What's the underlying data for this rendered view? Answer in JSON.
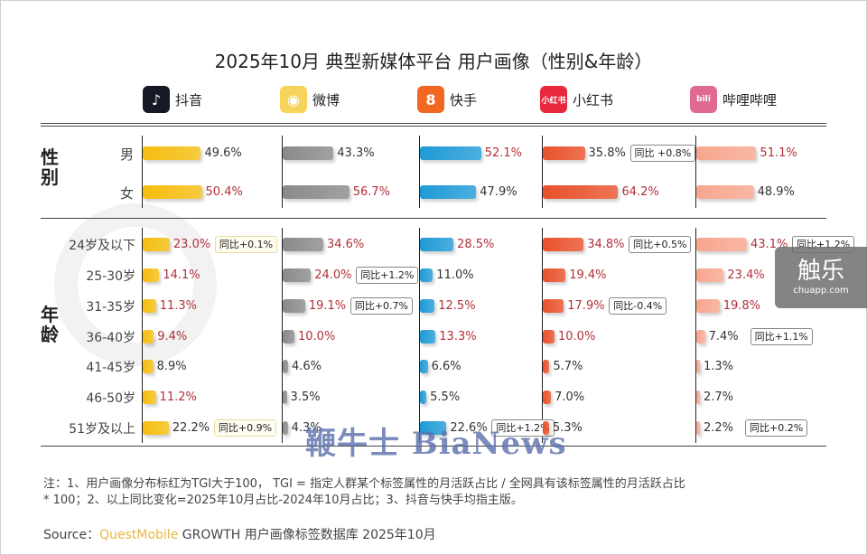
{
  "title": "2025年10月 典型新媒体平台 用户画像（性别&年龄）",
  "platforms": [
    {
      "name": "抖音",
      "icon": "douyin-icon",
      "color": "#f5bd10",
      "icon_bg": "#161823",
      "icon_glyph": "♪"
    },
    {
      "name": "微博",
      "icon": "weibo-icon",
      "color": "#8a8a8a",
      "icon_bg": "#f7d35a",
      "icon_glyph": "◉"
    },
    {
      "name": "快手",
      "icon": "kuaishou-icon",
      "color": "#1f9ad6",
      "icon_bg": "#f26722",
      "icon_glyph": "8"
    },
    {
      "name": "小红书",
      "icon": "xiaohongshu-icon",
      "color": "#e8512b",
      "icon_bg": "#e8283d",
      "icon_glyph": "小红书"
    },
    {
      "name": "哔哩哔哩",
      "icon": "bilibili-icon",
      "color": "#f7a68e",
      "icon_bg": "#e06a90",
      "icon_glyph": "bili"
    }
  ],
  "sections": {
    "gender": "性别",
    "age": "年龄"
  },
  "chart_data": {
    "type": "bar",
    "title": "2025年10月 典型新媒体平台 用户画像（性别&年龄）",
    "unit": "%",
    "gender": {
      "categories": [
        "男",
        "女"
      ],
      "series": [
        {
          "name": "抖音",
          "values": [
            49.6,
            50.4
          ],
          "highlight": [
            false,
            true
          ],
          "yoy": [
            null,
            null
          ]
        },
        {
          "name": "微博",
          "values": [
            43.3,
            56.7
          ],
          "highlight": [
            false,
            true
          ],
          "yoy": [
            null,
            null
          ]
        },
        {
          "name": "快手",
          "values": [
            52.1,
            47.9
          ],
          "highlight": [
            true,
            false
          ],
          "yoy": [
            null,
            null
          ]
        },
        {
          "name": "小红书",
          "values": [
            35.8,
            64.2
          ],
          "highlight": [
            false,
            true
          ],
          "yoy": [
            "同比 +0.8%",
            null
          ]
        },
        {
          "name": "哔哩哔哩",
          "values": [
            51.1,
            48.9
          ],
          "highlight": [
            true,
            false
          ],
          "yoy": [
            null,
            null
          ]
        }
      ]
    },
    "age": {
      "categories": [
        "24岁及以下",
        "25-30岁",
        "31-35岁",
        "36-40岁",
        "41-45岁",
        "46-50岁",
        "51岁及以上"
      ],
      "series": [
        {
          "name": "抖音",
          "values": [
            23.0,
            14.1,
            11.3,
            9.4,
            8.9,
            11.2,
            22.2
          ],
          "highlight": [
            true,
            true,
            true,
            true,
            false,
            true,
            false
          ],
          "yoy": [
            "同比+0.1%",
            null,
            null,
            null,
            null,
            null,
            "同比+0.9%"
          ]
        },
        {
          "name": "微博",
          "values": [
            34.6,
            24.0,
            19.1,
            10.0,
            4.6,
            3.5,
            4.3
          ],
          "highlight": [
            true,
            true,
            true,
            true,
            false,
            false,
            false
          ],
          "yoy": [
            null,
            "同比+1.2%",
            "同比+0.7%",
            null,
            null,
            null,
            null
          ]
        },
        {
          "name": "快手",
          "values": [
            28.5,
            11.0,
            12.5,
            13.3,
            6.6,
            5.5,
            22.6
          ],
          "highlight": [
            true,
            false,
            true,
            true,
            false,
            false,
            false
          ],
          "yoy": [
            null,
            null,
            null,
            null,
            null,
            null,
            "同比+1.2%"
          ]
        },
        {
          "name": "小红书",
          "values": [
            34.8,
            19.4,
            17.9,
            10.0,
            5.7,
            7.0,
            5.3
          ],
          "highlight": [
            true,
            true,
            true,
            true,
            false,
            false,
            false
          ],
          "yoy": [
            "同比+0.5%",
            null,
            "同比-0.4%",
            null,
            null,
            null,
            null
          ]
        },
        {
          "name": "哔哩哔哩",
          "values": [
            43.1,
            23.4,
            19.8,
            7.4,
            1.3,
            2.7,
            2.2
          ],
          "highlight": [
            true,
            true,
            true,
            false,
            false,
            false,
            false
          ],
          "yoy": [
            "同比+1.2%",
            null,
            null,
            "同比+1.1%",
            null,
            null,
            "同比+0.2%"
          ]
        }
      ]
    }
  },
  "notes": {
    "line1": "注：1、用户画像分布标红为TGI大于100， TGI = 指定人群某个标签属性的月活跃占比 / 全网具有该标签属性的月活跃占比",
    "line2": "* 100；2、以上同比变化=2025年10月占比-2024年10月占比；3、抖音与快手均指主版。"
  },
  "source": {
    "prefix": "Source：",
    "brand": "QuestMobile",
    "rest": " GROWTH 用户画像标签数据库 2025年10月"
  },
  "watermarks": {
    "chuapp_big": "触乐",
    "chuapp_small": "chuapp.com",
    "bianews": "鞭牛士 BiaNews"
  }
}
